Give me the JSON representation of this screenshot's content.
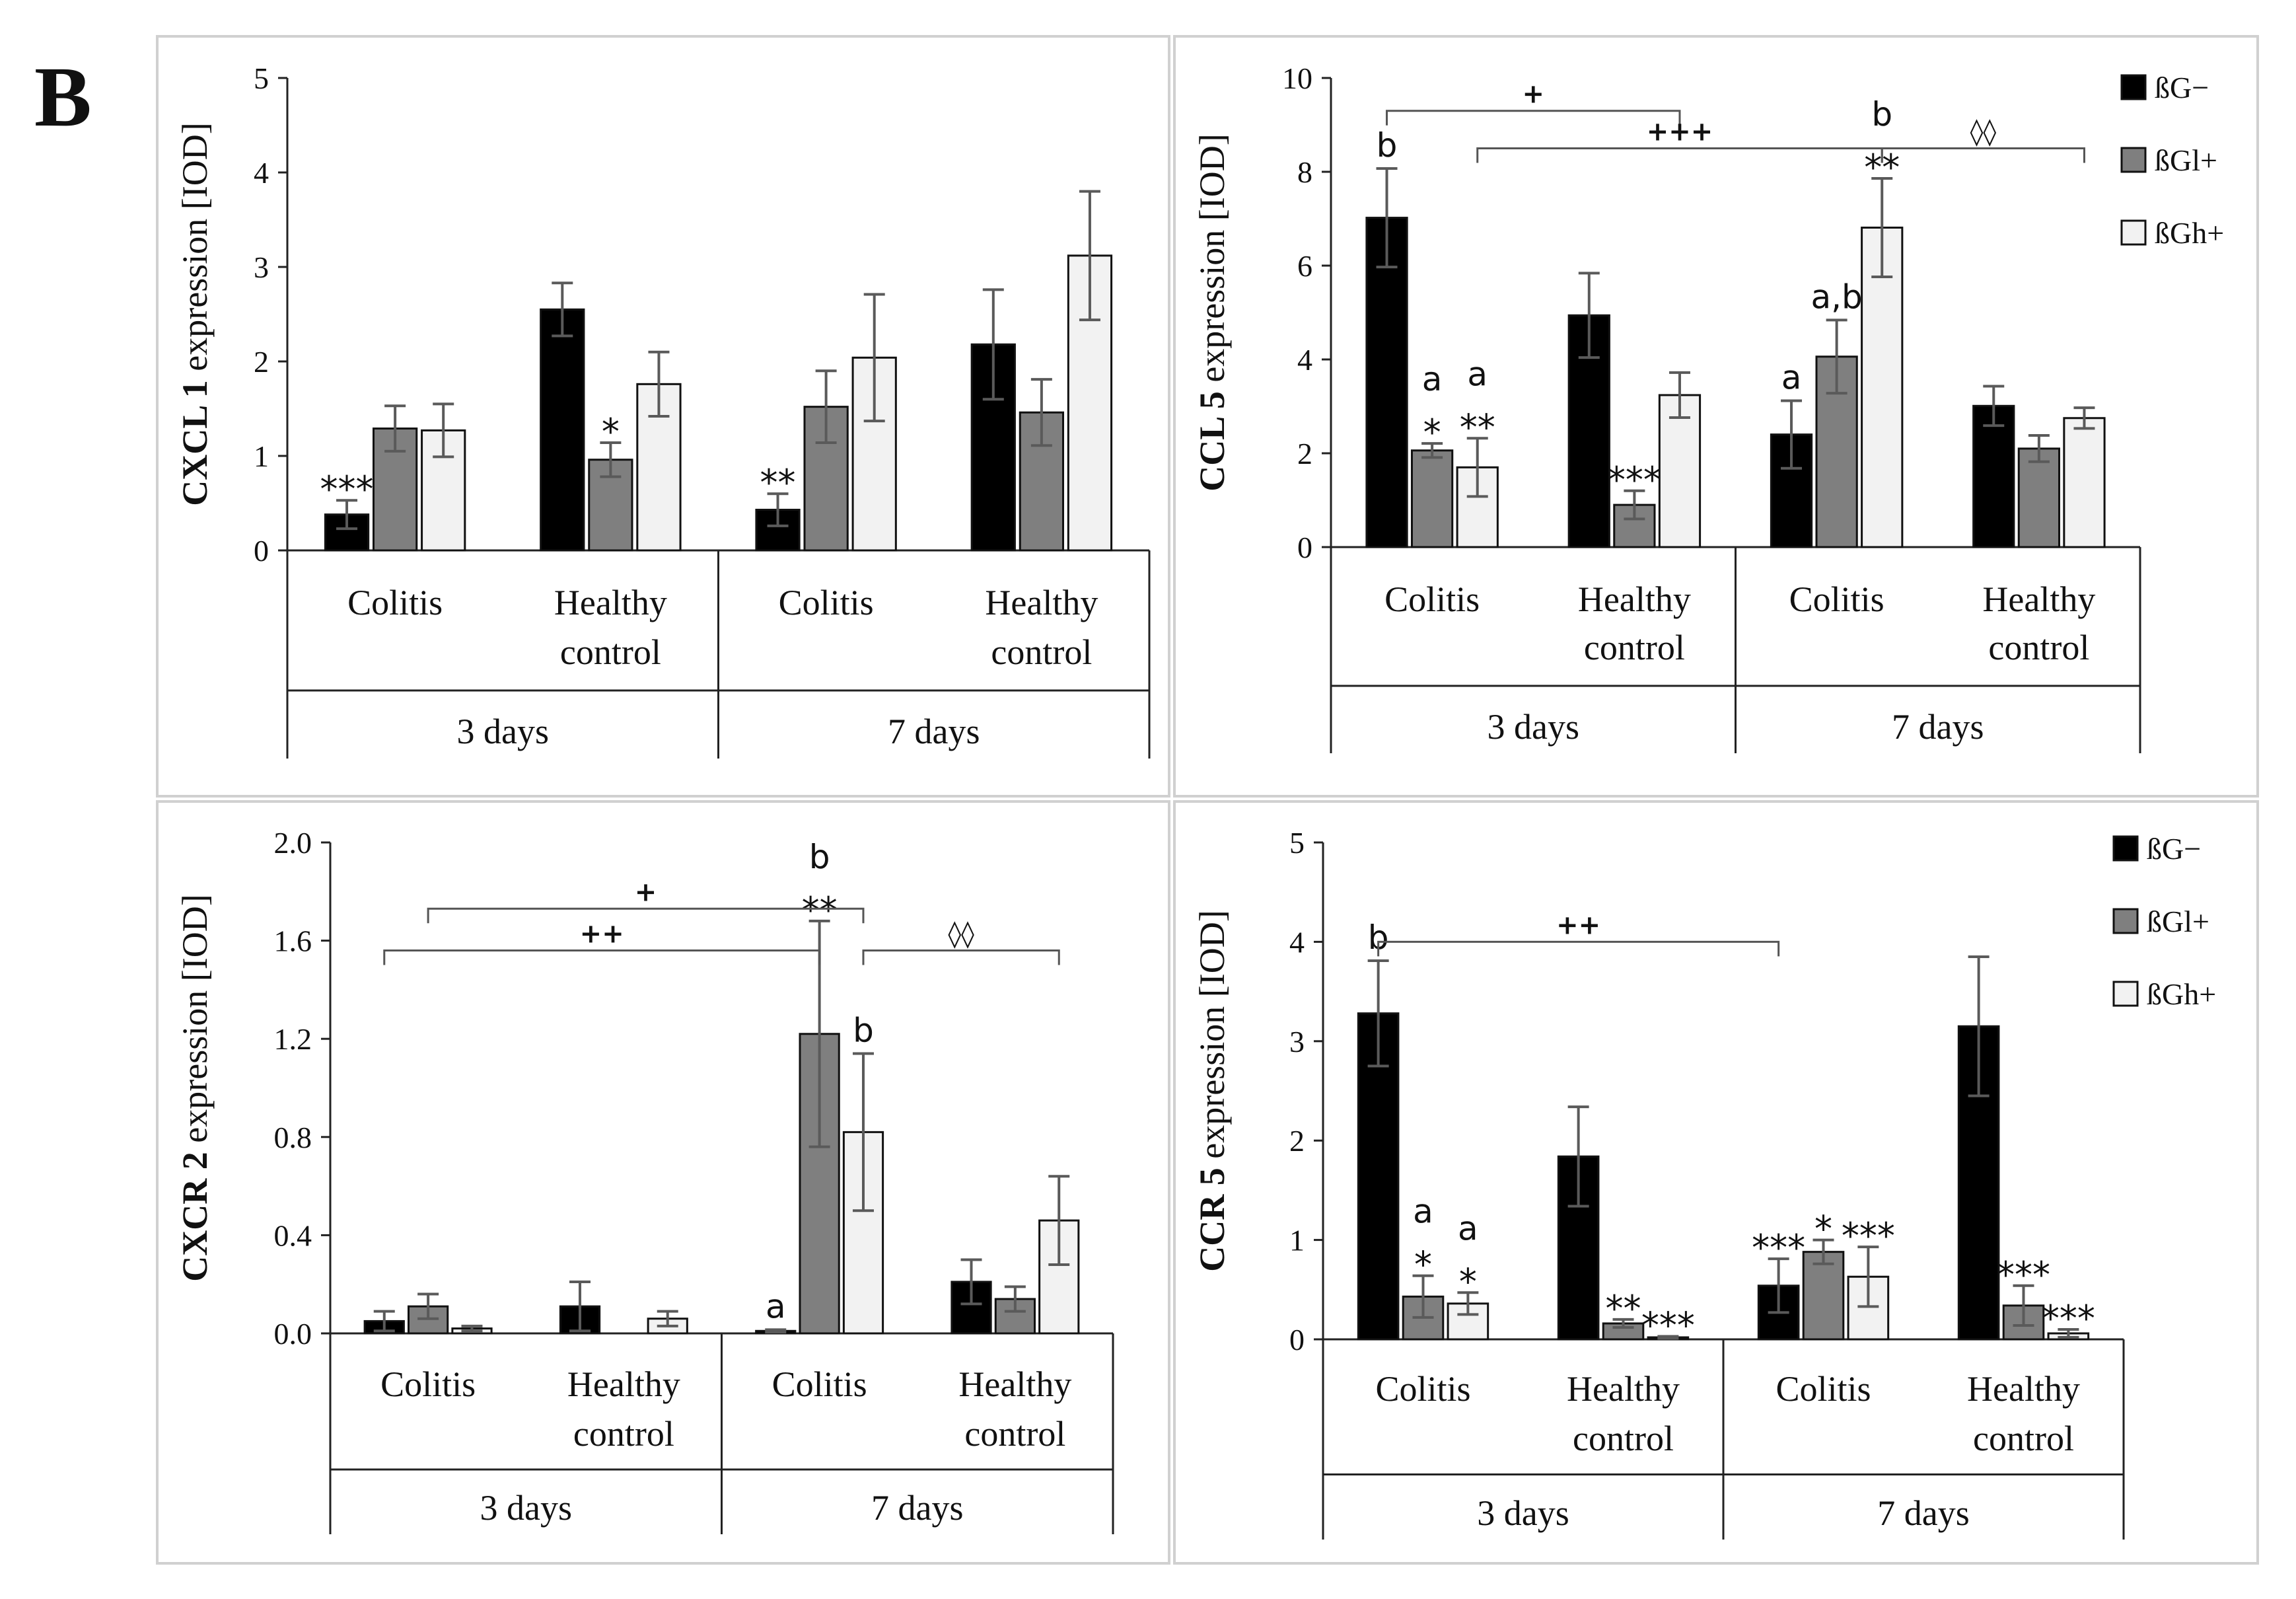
{
  "figure_label": "B",
  "legend_entries": [
    "ßG−",
    "ßGl+",
    "ßGh+"
  ],
  "colors": {
    "series": [
      "#000000",
      "#7f7f7f",
      "#f2f2f2"
    ],
    "panel_border": "#d0d0d0",
    "axis": "#444444",
    "error": "#5a5a5a"
  },
  "chart_data": [
    {
      "type": "bar",
      "title": "",
      "ylabel": "CXCL 1 expression [IOD]",
      "ylabel_bold": "CXCL 1",
      "ylabel_rest": " expression [IOD]",
      "ylim": [
        0,
        5
      ],
      "yticks": [
        "0",
        "1",
        "2",
        "3",
        "4",
        "5"
      ],
      "categories": [
        "Colitis",
        "Healthy control",
        "Colitis",
        "Healthy control"
      ],
      "category_lines": [
        [
          "Colitis"
        ],
        [
          "Healthy",
          "control"
        ],
        [
          "Colitis"
        ],
        [
          "Healthy",
          "control"
        ]
      ],
      "groups": [
        "3 days",
        "7 days"
      ],
      "legend": false,
      "series": [
        {
          "name": "ßG−",
          "values": [
            0.38,
            2.55,
            0.43,
            2.18
          ],
          "errors": [
            0.15,
            0.28,
            0.17,
            0.58
          ],
          "labels": [
            [
              "***"
            ],
            [],
            [
              "**"
            ],
            []
          ]
        },
        {
          "name": "ßGl+",
          "values": [
            1.29,
            0.96,
            1.52,
            1.46
          ],
          "errors": [
            0.24,
            0.18,
            0.38,
            0.35
          ],
          "labels": [
            [],
            [
              "*"
            ],
            [],
            []
          ]
        },
        {
          "name": "ßGh+",
          "values": [
            1.27,
            1.76,
            2.04,
            3.12
          ],
          "errors": [
            0.28,
            0.34,
            0.67,
            0.68
          ],
          "labels": [
            [],
            [],
            [],
            []
          ]
        }
      ],
      "brackets": []
    },
    {
      "type": "bar",
      "title": "",
      "ylabel": "CCL 5 expression [IOD]",
      "ylabel_bold": "CCL 5",
      "ylabel_rest": " expression [IOD]",
      "ylim": [
        0,
        10
      ],
      "yticks": [
        "0",
        "2",
        "4",
        "6",
        "8",
        "10"
      ],
      "categories": [
        "Colitis",
        "Healthy control",
        "Colitis",
        "Healthy control"
      ],
      "category_lines": [
        [
          "Colitis"
        ],
        [
          "Healthy",
          "control"
        ],
        [
          "Colitis"
        ],
        [
          "Healthy",
          "control"
        ]
      ],
      "groups": [
        "3 days",
        "7 days"
      ],
      "legend": true,
      "series": [
        {
          "name": "ßG−",
          "values": [
            7.02,
            4.94,
            2.4,
            3.01
          ],
          "errors": [
            1.05,
            0.9,
            0.72,
            0.42
          ],
          "labels": [
            [
              "b"
            ],
            [],
            [
              "a"
            ],
            []
          ]
        },
        {
          "name": "ßGl+",
          "values": [
            2.06,
            0.9,
            4.06,
            2.1
          ],
          "errors": [
            0.15,
            0.3,
            0.78,
            0.28
          ],
          "labels": [
            [
              "a",
              "*"
            ],
            [
              "***"
            ],
            [
              "a,b"
            ],
            []
          ]
        },
        {
          "name": "ßGh+",
          "values": [
            1.7,
            3.24,
            6.81,
            2.75
          ],
          "errors": [
            0.62,
            0.48,
            1.05,
            0.22
          ],
          "labels": [
            [
              "a",
              "**"
            ],
            [],
            [
              "b",
              "**"
            ],
            []
          ]
        }
      ],
      "brackets": [
        {
          "from": [
            0,
            0
          ],
          "to": [
            1,
            2
          ],
          "y": 9.3,
          "label": "+"
        },
        {
          "from": [
            0,
            2
          ],
          "to": [
            2,
            2
          ],
          "y": 8.5,
          "label": "+++"
        },
        {
          "from": [
            2,
            2
          ],
          "to": [
            3,
            2
          ],
          "y": 8.5,
          "label": "◊◊"
        }
      ]
    },
    {
      "type": "bar",
      "title": "",
      "ylabel": "CXCR 2 expression [IOD]",
      "ylabel_bold": "CXCR 2",
      "ylabel_rest": " expression [IOD]",
      "ylim": [
        0,
        2
      ],
      "yticks": [
        "0.0",
        "0.4",
        "0.8",
        "1.2",
        "1.6",
        "2.0"
      ],
      "categories": [
        "Colitis",
        "Healthy control",
        "Colitis",
        "Healthy control"
      ],
      "category_lines": [
        [
          "Colitis"
        ],
        [
          "Healthy",
          "control"
        ],
        [
          "Colitis"
        ],
        [
          "Healthy",
          "control"
        ]
      ],
      "groups": [
        "3 days",
        "7 days"
      ],
      "legend": false,
      "series": [
        {
          "name": "ßG−",
          "values": [
            0.05,
            0.11,
            0.01,
            0.21
          ],
          "errors": [
            0.04,
            0.1,
            0.005,
            0.09
          ],
          "labels": [
            [],
            [],
            [
              "a"
            ],
            []
          ]
        },
        {
          "name": "ßGl+",
          "values": [
            0.11,
            0.0,
            1.22,
            0.14
          ],
          "errors": [
            0.05,
            0.0,
            0.46,
            0.05
          ],
          "labels": [
            [],
            [],
            [
              "b",
              "**"
            ],
            []
          ]
        },
        {
          "name": "ßGh+",
          "values": [
            0.02,
            0.06,
            0.82,
            0.46
          ],
          "errors": [
            0.01,
            0.03,
            0.32,
            0.18
          ],
          "labels": [
            [],
            [],
            [
              "b"
            ],
            []
          ]
        }
      ],
      "brackets": [
        {
          "from": [
            0,
            1
          ],
          "to": [
            2,
            2
          ],
          "y": 1.73,
          "label": "+"
        },
        {
          "from": [
            0,
            0
          ],
          "to": [
            2,
            1
          ],
          "y": 1.56,
          "label": "++"
        },
        {
          "from": [
            2,
            2
          ],
          "to": [
            3,
            2
          ],
          "y": 1.56,
          "label": "◊◊"
        }
      ]
    },
    {
      "type": "bar",
      "title": "",
      "ylabel": "CCR 5 expression [IOD]",
      "ylabel_bold": "CCR 5",
      "ylabel_rest": " expression [IOD]",
      "ylim": [
        0,
        5
      ],
      "yticks": [
        "0",
        "1",
        "2",
        "3",
        "4",
        "5"
      ],
      "categories": [
        "Colitis",
        "Healthy control",
        "Colitis",
        "Healthy control"
      ],
      "category_lines": [
        [
          "Colitis"
        ],
        [
          "Healthy",
          "control"
        ],
        [
          "Colitis"
        ],
        [
          "Healthy",
          "control"
        ]
      ],
      "groups": [
        "3 days",
        "7 days"
      ],
      "legend": true,
      "series": [
        {
          "name": "ßG−",
          "values": [
            3.28,
            1.84,
            0.54,
            3.15
          ],
          "errors": [
            0.53,
            0.5,
            0.27,
            0.7
          ],
          "labels": [
            [
              "b"
            ],
            [],
            [
              "***"
            ],
            []
          ]
        },
        {
          "name": "ßGl+",
          "values": [
            0.43,
            0.16,
            0.88,
            0.34
          ],
          "errors": [
            0.21,
            0.04,
            0.12,
            0.2
          ],
          "labels": [
            [
              "a",
              "*"
            ],
            [
              "**"
            ],
            [
              "*"
            ],
            [
              "***"
            ]
          ]
        },
        {
          "name": "ßGh+",
          "values": [
            0.36,
            0.02,
            0.63,
            0.06
          ],
          "errors": [
            0.11,
            0.01,
            0.3,
            0.04
          ],
          "labels": [
            [
              "a",
              "*"
            ],
            [
              "***"
            ],
            [
              "***"
            ],
            [
              "***"
            ]
          ]
        }
      ],
      "brackets": [
        {
          "from": [
            0,
            0
          ],
          "to": [
            2,
            0
          ],
          "y": 4.0,
          "label": "++"
        }
      ]
    }
  ]
}
